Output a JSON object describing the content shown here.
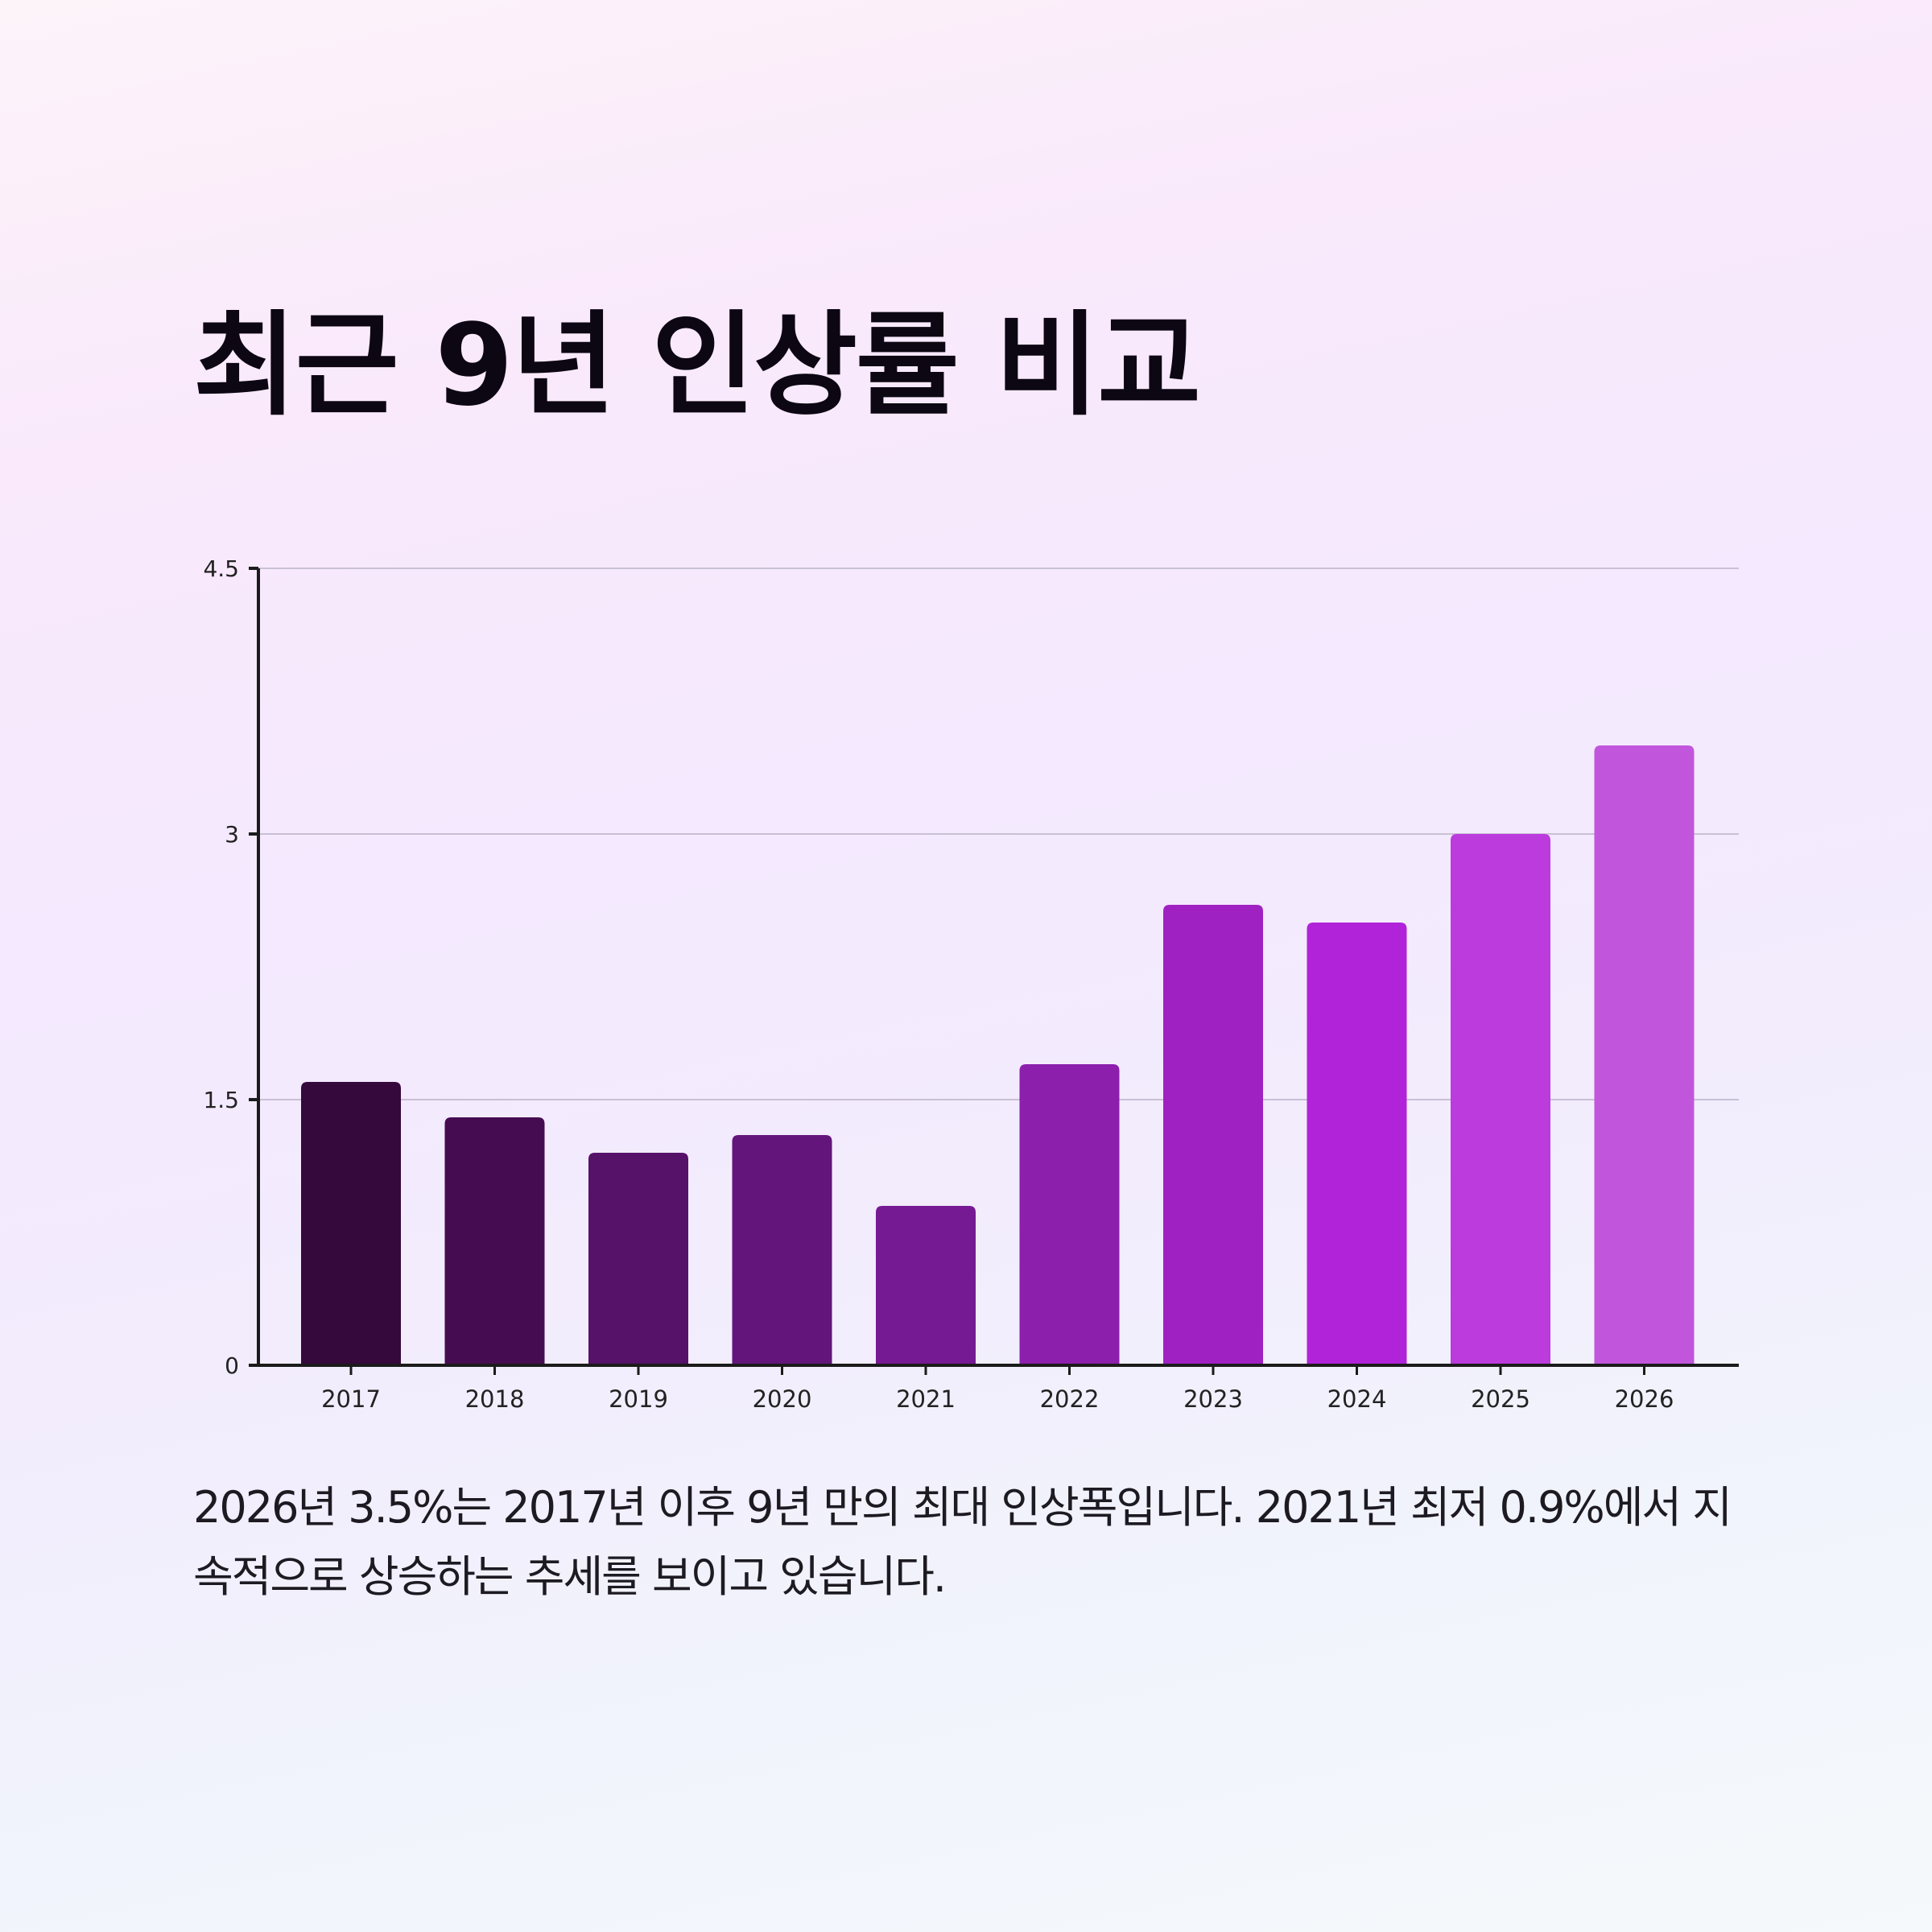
{
  "title": "최근 9년 인상률 비교",
  "caption": "2026년 3.5%는 2017년 이후 9년 만의 최대 인상폭입니다. 2021년 최저 0.9%에서 지속적으로 상승하는 추세를 보이고 있습니다.",
  "chart_data": {
    "type": "bar",
    "title": "",
    "xlabel": "",
    "ylabel": "",
    "categories": [
      "2017",
      "2018",
      "2019",
      "2020",
      "2021",
      "2022",
      "2023",
      "2024",
      "2025",
      "2026"
    ],
    "values": [
      1.6,
      1.4,
      1.2,
      1.3,
      0.9,
      1.7,
      2.6,
      2.5,
      3.0,
      3.5
    ],
    "ylim": [
      0,
      4.5
    ],
    "yticks": [
      0,
      1.5,
      3,
      4.5
    ],
    "ytick_labels": [
      "0",
      "1.5",
      "3",
      "4.5"
    ],
    "grid": true,
    "legend": "none",
    "bar_colors": [
      "#35093c",
      "#460c52",
      "#561169",
      "#64157c",
      "#761a94",
      "#8c1fac",
      "#a021c2",
      "#b123d9",
      "#bb3bdc",
      "#c156dd"
    ],
    "grid_color": "#c9c0d5",
    "axis_color": "#1b1b1b"
  }
}
